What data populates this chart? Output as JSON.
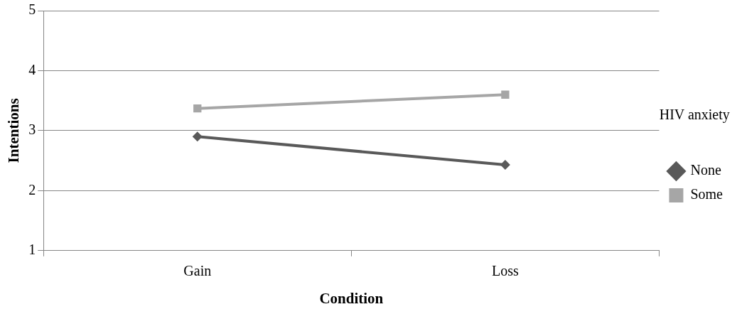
{
  "chart_data": {
    "type": "line",
    "xlabel": "Condition",
    "ylabel": "Intentions",
    "legend_title": "HIV anxiety",
    "categories": [
      "Gain",
      "Loss"
    ],
    "series": [
      {
        "name": "None",
        "color": "#595959",
        "marker": "diamond",
        "values": [
          2.9,
          2.43
        ]
      },
      {
        "name": "Some",
        "color": "#a6a6a6",
        "marker": "square",
        "values": [
          3.37,
          3.6
        ]
      }
    ],
    "ylim": [
      1,
      5
    ],
    "yticks": [
      1,
      2,
      3,
      4,
      5
    ],
    "grid": "y",
    "legend": "right",
    "line_style": "solid"
  }
}
